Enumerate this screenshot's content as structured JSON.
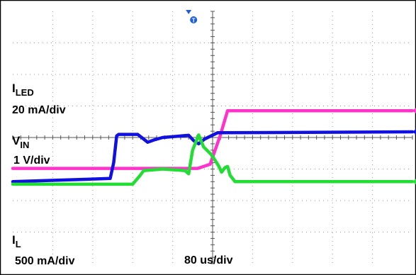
{
  "chart_data": {
    "type": "line",
    "title": "",
    "x_scale_label": "80 us/div",
    "x_divisions": 10,
    "y_divisions": 8,
    "x_range_us": [
      0,
      800
    ],
    "grid": true,
    "trigger_marker": {
      "label": "T",
      "color": "#1e5fd6",
      "x_us": 352
    },
    "series": [
      {
        "name": "I",
        "name_sub": "LED",
        "scale": "20 mA/div",
        "color": "#ff33cc",
        "units": "div",
        "points": [
          [
            0,
            -0.98
          ],
          [
            370,
            -0.98
          ],
          [
            395,
            -0.85
          ],
          [
            415,
            0.05
          ],
          [
            430,
            0.85
          ],
          [
            800,
            0.85
          ]
        ]
      },
      {
        "name": "V",
        "name_sub": "IN",
        "scale": "1 V/div",
        "color": "#1010e0",
        "units": "div",
        "points": [
          [
            0,
            -1.4
          ],
          [
            195,
            -1.3
          ],
          [
            202,
            -0.8
          ],
          [
            208,
            0.05
          ],
          [
            212,
            0.1
          ],
          [
            250,
            0.1
          ],
          [
            262,
            -0.05
          ],
          [
            270,
            -0.15
          ],
          [
            282,
            -0.08
          ],
          [
            300,
            0
          ],
          [
            352,
            0.07
          ],
          [
            362,
            -0.1
          ],
          [
            372,
            -0.2
          ],
          [
            384,
            -0.05
          ],
          [
            410,
            0.15
          ],
          [
            800,
            0.18
          ]
        ]
      },
      {
        "name": "I",
        "name_sub": "L",
        "scale": "500 mA/div",
        "color": "#22dd33",
        "units": "div",
        "points": [
          [
            0,
            -1.48
          ],
          [
            240,
            -1.48
          ],
          [
            255,
            -1.2
          ],
          [
            262,
            -1.05
          ],
          [
            300,
            -1.0
          ],
          [
            345,
            -1.05
          ],
          [
            352,
            -1.15
          ],
          [
            360,
            -0.4
          ],
          [
            372,
            0.08
          ],
          [
            382,
            -0.3
          ],
          [
            398,
            -0.55
          ],
          [
            412,
            -0.9
          ],
          [
            418,
            -1.1
          ],
          [
            425,
            -0.95
          ],
          [
            430,
            -0.92
          ],
          [
            435,
            -1.2
          ],
          [
            445,
            -1.4
          ],
          [
            800,
            -1.4
          ]
        ]
      }
    ]
  },
  "labels": {
    "iled_name": "I",
    "iled_sub": "LED",
    "iled_scale": "20 mA/div",
    "vin_name": "V",
    "vin_sub": "IN",
    "vin_scale": "1 V/div",
    "il_name": "I",
    "il_sub": "L",
    "il_scale": "500 mA/div",
    "time_scale": "80 us/div"
  }
}
